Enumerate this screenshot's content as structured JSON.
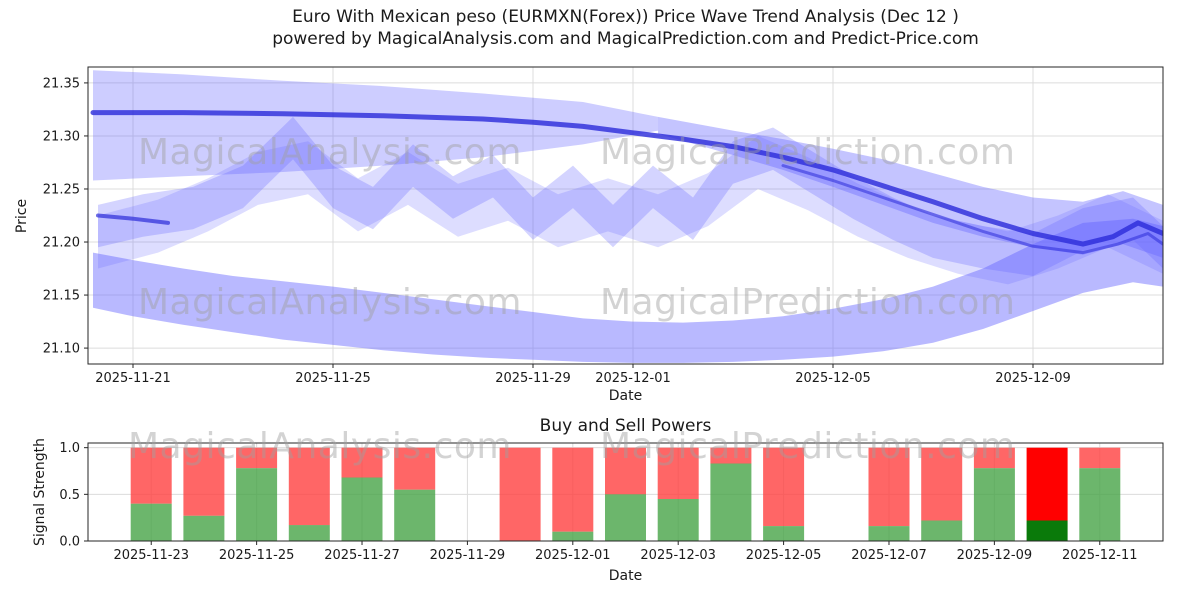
{
  "title": {
    "line1": "Euro With Mexican peso (EURMXN(Forex)) Price Wave Trend Analysis (Dec 12 )",
    "line2": "powered by MagicalAnalysis.com and MagicalPrediction.com and Predict-Price.com"
  },
  "watermarks": {
    "left": "MagicalAnalysis.com",
    "right": "MagicalPrediction.com"
  },
  "colors": {
    "band": "#6464ff",
    "trend": "#2b2bd9",
    "bar_red": "#ff4040",
    "bar_green": "#47a447",
    "bar_red_highlight": "#ff0000",
    "bar_green_highlight": "#0a7a0a",
    "grid": "#dcdcdc",
    "axis": "#262626",
    "text": "#1a1a1a",
    "watermark": "#a0a0a0"
  },
  "chart_data": [
    {
      "type": "area",
      "name": "price-wave-trend",
      "title": "",
      "xlabel": "Date",
      "ylabel": "Price",
      "ylim": [
        21.085,
        21.365
      ],
      "xlim_days": [
        0.1,
        21.6
      ],
      "yticks": [
        "21.10",
        "21.15",
        "21.20",
        "21.25",
        "21.30",
        "21.35"
      ],
      "ytick_values": [
        21.1,
        21.15,
        21.2,
        21.25,
        21.3,
        21.35
      ],
      "xticks": [
        {
          "label": "2025-11-21",
          "day": 1
        },
        {
          "label": "2025-11-25",
          "day": 5
        },
        {
          "label": "2025-11-29",
          "day": 9
        },
        {
          "label": "2025-12-01",
          "day": 11
        },
        {
          "label": "2025-12-05",
          "day": 15
        },
        {
          "label": "2025-12-09",
          "day": 19
        }
      ],
      "bands": [
        {
          "name": "upper-funnel",
          "alpha": 0.32,
          "x": [
            0.2,
            2,
            4,
            6,
            8,
            10,
            11.5
          ],
          "upper": [
            21.362,
            21.358,
            21.352,
            21.347,
            21.34,
            21.332,
            21.318
          ],
          "lower": [
            21.258,
            21.262,
            21.266,
            21.272,
            21.28,
            21.292,
            21.305
          ]
        },
        {
          "name": "mid-decline",
          "alpha": 0.38,
          "x": [
            11.5,
            13,
            14,
            15,
            16,
            17,
            18,
            19,
            20,
            20.8,
            21.6
          ],
          "upper": [
            21.318,
            21.305,
            21.297,
            21.288,
            21.278,
            21.265,
            21.252,
            21.242,
            21.238,
            21.248,
            21.235
          ],
          "lower": [
            21.302,
            21.282,
            21.268,
            21.252,
            21.235,
            21.218,
            21.205,
            21.195,
            21.188,
            21.198,
            21.185
          ]
        },
        {
          "name": "lower-band",
          "alpha": 0.45,
          "x": [
            0.2,
            1,
            2,
            3,
            4,
            5,
            6,
            7,
            8,
            9,
            10,
            11,
            12,
            13,
            14,
            15,
            16,
            17,
            18,
            19,
            20,
            21,
            21.6
          ],
          "upper": [
            21.19,
            21.183,
            21.175,
            21.168,
            21.163,
            21.158,
            21.152,
            21.146,
            21.14,
            21.134,
            21.128,
            21.125,
            21.124,
            21.126,
            21.13,
            21.137,
            21.146,
            21.158,
            21.175,
            21.198,
            21.218,
            21.222,
            21.215
          ],
          "lower": [
            21.138,
            21.13,
            21.122,
            21.115,
            21.108,
            21.103,
            21.098,
            21.094,
            21.091,
            21.089,
            21.087,
            21.086,
            21.086,
            21.087,
            21.089,
            21.092,
            21.097,
            21.105,
            21.118,
            21.135,
            21.152,
            21.162,
            21.158
          ]
        },
        {
          "name": "wave-a",
          "alpha": 0.28,
          "x": [
            0.3,
            1.2,
            2.2,
            3.2,
            4.2,
            5.0,
            5.8,
            6.6,
            7.4,
            8.2,
            9.0,
            9.8,
            10.6,
            11.4,
            12.2,
            13.0,
            13.8,
            14.6,
            15.4,
            16.2,
            17.0,
            18.0,
            19.0,
            20.0,
            21.0,
            21.6
          ],
          "upper": [
            21.235,
            21.245,
            21.252,
            21.272,
            21.318,
            21.272,
            21.252,
            21.292,
            21.262,
            21.282,
            21.242,
            21.272,
            21.235,
            21.272,
            21.242,
            21.295,
            21.308,
            21.285,
            21.262,
            21.242,
            21.225,
            21.215,
            21.208,
            21.232,
            21.242,
            21.215
          ],
          "lower": [
            21.195,
            21.205,
            21.212,
            21.232,
            21.278,
            21.232,
            21.212,
            21.252,
            21.222,
            21.242,
            21.202,
            21.232,
            21.195,
            21.232,
            21.202,
            21.255,
            21.268,
            21.245,
            21.222,
            21.202,
            21.185,
            21.175,
            21.168,
            21.192,
            21.202,
            21.175
          ]
        },
        {
          "name": "wave-b",
          "alpha": 0.22,
          "x": [
            0.3,
            1.5,
            2.5,
            3.5,
            4.5,
            5.5,
            6.5,
            7.5,
            8.5,
            9.5,
            10.5,
            11.5,
            12.5,
            13.5,
            14.5,
            15.5,
            16.5,
            17.5,
            18.5,
            19.5,
            20.5,
            21.6
          ],
          "upper": [
            21.225,
            21.24,
            21.26,
            21.285,
            21.295,
            21.26,
            21.285,
            21.255,
            21.27,
            21.245,
            21.26,
            21.245,
            21.265,
            21.3,
            21.28,
            21.255,
            21.235,
            21.22,
            21.21,
            21.225,
            21.245,
            21.22
          ],
          "lower": [
            21.175,
            21.19,
            21.21,
            21.235,
            21.245,
            21.21,
            21.235,
            21.205,
            21.22,
            21.195,
            21.21,
            21.195,
            21.215,
            21.25,
            21.23,
            21.205,
            21.185,
            21.17,
            21.16,
            21.175,
            21.195,
            21.17
          ]
        }
      ],
      "lines": [
        {
          "name": "trend-main-line",
          "width": 5,
          "alpha": 0.8,
          "x": [
            0.2,
            2,
            4,
            6,
            8,
            9,
            10,
            11,
            12,
            13,
            14,
            15,
            16,
            17,
            18,
            19,
            20,
            20.6,
            21.1,
            21.6
          ],
          "y": [
            21.322,
            21.322,
            21.321,
            21.319,
            21.316,
            21.313,
            21.309,
            21.303,
            21.297,
            21.29,
            21.28,
            21.268,
            21.253,
            21.238,
            21.222,
            21.208,
            21.198,
            21.205,
            21.218,
            21.208
          ]
        },
        {
          "name": "trend-left-stub-line",
          "width": 4,
          "alpha": 0.7,
          "x": [
            0.3,
            1.0,
            1.7
          ],
          "y": [
            21.225,
            21.222,
            21.218
          ]
        },
        {
          "name": "trend-secondary-line",
          "width": 3,
          "alpha": 0.55,
          "x": [
            14,
            15,
            16,
            17,
            18,
            19,
            20,
            20.7,
            21.3,
            21.6
          ],
          "y": [
            21.272,
            21.258,
            21.242,
            21.226,
            21.21,
            21.196,
            21.19,
            21.198,
            21.208,
            21.198
          ]
        }
      ]
    },
    {
      "type": "bar",
      "name": "buy-sell-powers",
      "title": "Buy and Sell Powers",
      "xlabel": "Date",
      "ylabel": "Signal Strength",
      "ylim": [
        0,
        1.05
      ],
      "xlim_days": [
        1.8,
        22.2
      ],
      "yticks": [
        "0.0",
        "0.5",
        "1.0"
      ],
      "ytick_values": [
        0.0,
        0.5,
        1.0
      ],
      "xticks": [
        {
          "label": "2025-11-23",
          "day": 3
        },
        {
          "label": "2025-11-25",
          "day": 5
        },
        {
          "label": "2025-11-27",
          "day": 7
        },
        {
          "label": "2025-11-29",
          "day": 9
        },
        {
          "label": "2025-12-01",
          "day": 11
        },
        {
          "label": "2025-12-03",
          "day": 13
        },
        {
          "label": "2025-12-05",
          "day": 15
        },
        {
          "label": "2025-12-07",
          "day": 17
        },
        {
          "label": "2025-12-09",
          "day": 19
        },
        {
          "label": "2025-12-11",
          "day": 21
        }
      ],
      "bars": [
        {
          "date": "2025-11-23",
          "day": 3,
          "buy": 0.4,
          "sell": 0.6,
          "highlight": false
        },
        {
          "date": "2025-11-24",
          "day": 4,
          "buy": 0.27,
          "sell": 0.73,
          "highlight": false
        },
        {
          "date": "2025-11-25",
          "day": 5,
          "buy": 0.78,
          "sell": 0.22,
          "highlight": false
        },
        {
          "date": "2025-11-26",
          "day": 6,
          "buy": 0.17,
          "sell": 0.83,
          "highlight": false
        },
        {
          "date": "2025-11-27",
          "day": 7,
          "buy": 0.68,
          "sell": 0.32,
          "highlight": false
        },
        {
          "date": "2025-11-28",
          "day": 8,
          "buy": 0.55,
          "sell": 0.45,
          "highlight": false
        },
        {
          "date": "2025-11-30",
          "day": 10,
          "buy": 0.0,
          "sell": 1.0,
          "highlight": false
        },
        {
          "date": "2025-12-01",
          "day": 11,
          "buy": 0.1,
          "sell": 0.9,
          "highlight": false
        },
        {
          "date": "2025-12-02",
          "day": 12,
          "buy": 0.5,
          "sell": 0.5,
          "highlight": false
        },
        {
          "date": "2025-12-03",
          "day": 13,
          "buy": 0.45,
          "sell": 0.55,
          "highlight": false
        },
        {
          "date": "2025-12-04",
          "day": 14,
          "buy": 0.83,
          "sell": 0.17,
          "highlight": false
        },
        {
          "date": "2025-12-05",
          "day": 15,
          "buy": 0.16,
          "sell": 0.84,
          "highlight": false
        },
        {
          "date": "2025-12-07",
          "day": 17,
          "buy": 0.16,
          "sell": 0.84,
          "highlight": false
        },
        {
          "date": "2025-12-08",
          "day": 18,
          "buy": 0.22,
          "sell": 0.78,
          "highlight": false
        },
        {
          "date": "2025-12-09",
          "day": 19,
          "buy": 0.78,
          "sell": 0.22,
          "highlight": false
        },
        {
          "date": "2025-12-10",
          "day": 20,
          "buy": 0.22,
          "sell": 0.78,
          "highlight": true
        },
        {
          "date": "2025-12-11",
          "day": 21,
          "buy": 0.78,
          "sell": 0.22,
          "highlight": false
        }
      ]
    }
  ]
}
